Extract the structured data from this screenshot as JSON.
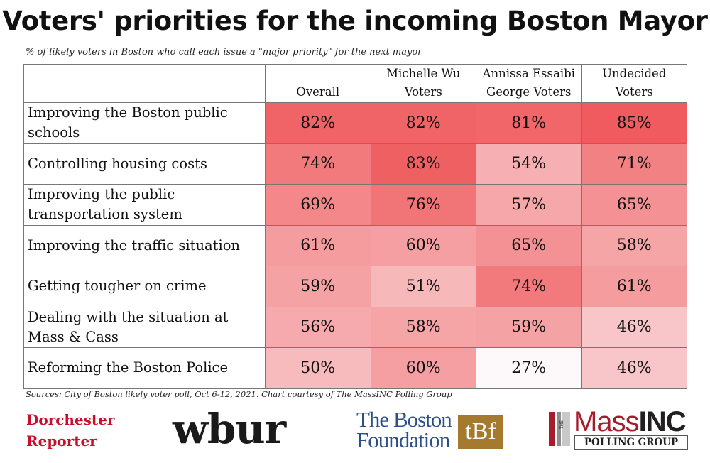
{
  "title": "Voters' priorities for the incoming Boston Mayor",
  "subtitle": "% of likely voters in Boston who call each issue a \"major priority\" for the next mayor",
  "source": "Sources: City of Boston likely voter poll, Oct 6-12, 2021. Chart courtesy of The MassINC Polling Group",
  "logos": {
    "dorchester_line1": "Dorchester",
    "dorchester_line2": "Reporter",
    "wbur": "wbur",
    "boston_foundation_line1": "The Boston",
    "boston_foundation_line2": "Foundation",
    "boston_foundation_mark": "tBf",
    "massinc_name_a": "Mass",
    "massinc_name_b": "INC",
    "massinc_mark": "THE",
    "massinc_sub": "POLLING GROUP"
  },
  "colors": {
    "low": "#fdf9fb",
    "high": "#ef5b5e",
    "border": "#777777"
  },
  "chart_data": {
    "type": "heatmap",
    "columns": [
      {
        "line1": "",
        "line2": "Overall"
      },
      {
        "line1": "Michelle Wu",
        "line2": "Voters"
      },
      {
        "line1": "Annissa Essaibi",
        "line2": "George Voters"
      },
      {
        "line1": "Undecided",
        "line2": "Voters"
      }
    ],
    "rows": [
      {
        "line1": "Improving the Boston public",
        "line2": "schools",
        "values": [
          82,
          82,
          81,
          85
        ],
        "labels": [
          "82%",
          "82%",
          "81%",
          "85%"
        ]
      },
      {
        "line1": "Controlling housing costs",
        "line2": "",
        "values": [
          74,
          83,
          54,
          71
        ],
        "labels": [
          "74%",
          "83%",
          "54%",
          "71%"
        ]
      },
      {
        "line1": "Improving the public",
        "line2": "transportation system",
        "values": [
          69,
          76,
          57,
          65
        ],
        "labels": [
          "69%",
          "76%",
          "57%",
          "65%"
        ]
      },
      {
        "line1": "Improving the traffic situation",
        "line2": "",
        "values": [
          61,
          60,
          65,
          58
        ],
        "labels": [
          "61%",
          "60%",
          "65%",
          "58%"
        ]
      },
      {
        "line1": "Getting tougher on crime",
        "line2": "",
        "values": [
          59,
          51,
          74,
          61
        ],
        "labels": [
          "59%",
          "51%",
          "74%",
          "61%"
        ]
      },
      {
        "line1": "Dealing with the situation at",
        "line2": "Mass & Cass",
        "values": [
          56,
          58,
          59,
          46
        ],
        "labels": [
          "56%",
          "58%",
          "59%",
          "46%"
        ]
      },
      {
        "line1": "Reforming the Boston Police",
        "line2": "",
        "values": [
          50,
          60,
          27,
          46
        ],
        "labels": [
          "50%",
          "60%",
          "27%",
          "46%"
        ]
      }
    ],
    "value_range": [
      27,
      85
    ]
  }
}
